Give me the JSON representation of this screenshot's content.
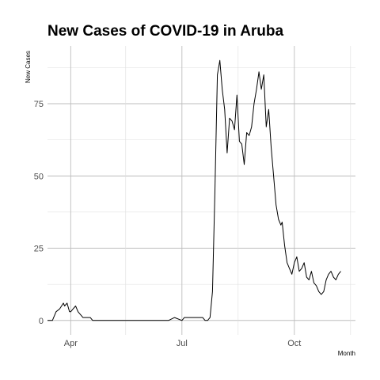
{
  "chart_data": {
    "type": "line",
    "title": "New Cases of COVID-19 in Aruba",
    "xlabel": "Month",
    "ylabel": "New Cases",
    "x_ticks": [
      "Apr",
      "Jul",
      "Oct"
    ],
    "y_ticks": [
      0,
      25,
      50,
      75
    ],
    "xlim": [
      "2020-03-13",
      "2020-11-20"
    ],
    "ylim": [
      -5,
      95
    ],
    "grid": true,
    "legend": "none",
    "series": [
      {
        "x": [
          "2020-03-13",
          "2020-03-17",
          "2020-03-20",
          "2020-03-23",
          "2020-03-26",
          "2020-03-27",
          "2020-03-29",
          "2020-03-31",
          "2020-04-01",
          "2020-04-03",
          "2020-04-05",
          "2020-04-07",
          "2020-04-09",
          "2020-04-11",
          "2020-04-13",
          "2020-04-15",
          "2020-04-17",
          "2020-04-19",
          "2020-04-22",
          "2020-04-26",
          "2020-05-01",
          "2020-05-10",
          "2020-06-01",
          "2020-06-20",
          "2020-06-25",
          "2020-07-01",
          "2020-07-03",
          "2020-07-06",
          "2020-07-10",
          "2020-07-15",
          "2020-07-18",
          "2020-07-20",
          "2020-07-22",
          "2020-07-24",
          "2020-07-26",
          "2020-07-28",
          "2020-07-30",
          "2020-08-01",
          "2020-08-03",
          "2020-08-05",
          "2020-08-07",
          "2020-08-09",
          "2020-08-11",
          "2020-08-13",
          "2020-08-15",
          "2020-08-17",
          "2020-08-19",
          "2020-08-21",
          "2020-08-23",
          "2020-08-25",
          "2020-08-27",
          "2020-08-29",
          "2020-08-31",
          "2020-09-02",
          "2020-09-04",
          "2020-09-06",
          "2020-09-08",
          "2020-09-10",
          "2020-09-12",
          "2020-09-14",
          "2020-09-16",
          "2020-09-18",
          "2020-09-20",
          "2020-09-21",
          "2020-09-23",
          "2020-09-25",
          "2020-09-27",
          "2020-09-29",
          "2020-10-01",
          "2020-10-03",
          "2020-10-05",
          "2020-10-07",
          "2020-10-09",
          "2020-10-11",
          "2020-10-13",
          "2020-10-15",
          "2020-10-17",
          "2020-10-19",
          "2020-10-21",
          "2020-10-23",
          "2020-10-25",
          "2020-10-27",
          "2020-10-29",
          "2020-10-31",
          "2020-11-02",
          "2020-11-04",
          "2020-11-06",
          "2020-11-08"
        ],
        "y": [
          0,
          0,
          3,
          4,
          6,
          5,
          6,
          3,
          3,
          4,
          5,
          3,
          2,
          1,
          1,
          1,
          1,
          0,
          0,
          0,
          0,
          0,
          0,
          0,
          1,
          0,
          1,
          1,
          1,
          1,
          1,
          0,
          0,
          1,
          10,
          45,
          85,
          90,
          80,
          73,
          58,
          70,
          69,
          66,
          78,
          62,
          61,
          54,
          65,
          64,
          67,
          75,
          80,
          86,
          80,
          85,
          67,
          73,
          60,
          50,
          40,
          35,
          33,
          34,
          26,
          20,
          18,
          16,
          20,
          22,
          17,
          18,
          20,
          15,
          14,
          17,
          13,
          12,
          10,
          9,
          10,
          14,
          16,
          17,
          15,
          14,
          16,
          17
        ]
      }
    ]
  }
}
